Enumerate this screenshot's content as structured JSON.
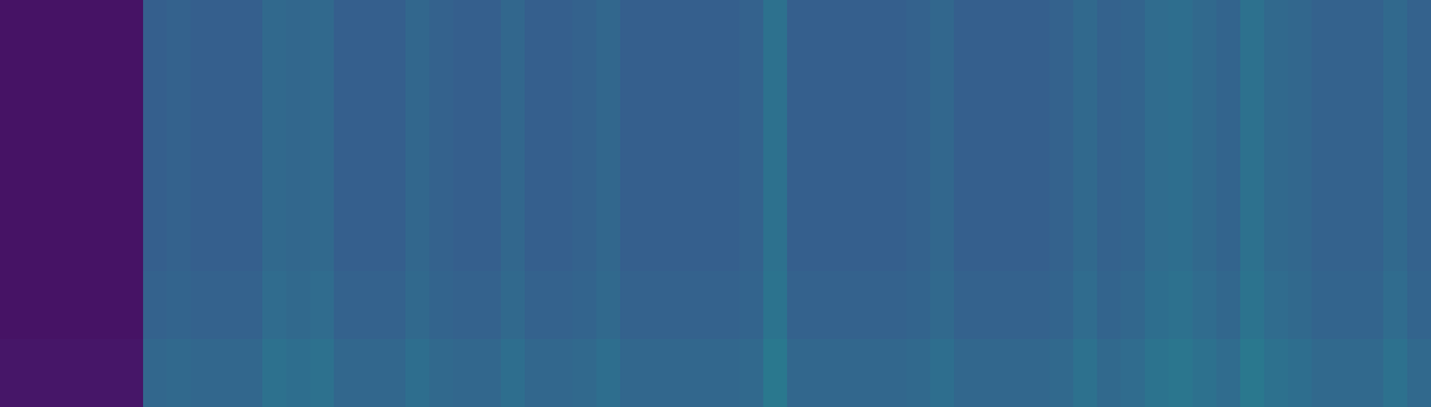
{
  "chart_data": {
    "type": "heatmap",
    "color": "viridis",
    "tick_labels": false,
    "color_range": [
      0,
      1
    ],
    "cells": [
      [
        0.05,
        0.05,
        0.05,
        0.05,
        0.05,
        0.05,
        0.3,
        0.31,
        0.3,
        0.3,
        0.3,
        0.34,
        0.33,
        0.34,
        0.3,
        0.3,
        0.3,
        0.33,
        0.31,
        0.3,
        0.3,
        0.33,
        0.3,
        0.3,
        0.31,
        0.33,
        0.3,
        0.3,
        0.3,
        0.3,
        0.3,
        0.31,
        0.37,
        0.3,
        0.3,
        0.3,
        0.3,
        0.3,
        0.31,
        0.33,
        0.3,
        0.3,
        0.3,
        0.3,
        0.31,
        0.34,
        0.31,
        0.32,
        0.35,
        0.36,
        0.34,
        0.32,
        0.37,
        0.34,
        0.33,
        0.31,
        0.31,
        0.31,
        0.34,
        0.31
      ],
      [
        0.05,
        0.05,
        0.05,
        0.05,
        0.05,
        0.05,
        0.3,
        0.31,
        0.3,
        0.3,
        0.3,
        0.34,
        0.33,
        0.34,
        0.3,
        0.3,
        0.3,
        0.33,
        0.31,
        0.3,
        0.3,
        0.33,
        0.3,
        0.3,
        0.31,
        0.33,
        0.3,
        0.3,
        0.3,
        0.3,
        0.3,
        0.31,
        0.37,
        0.3,
        0.3,
        0.3,
        0.3,
        0.3,
        0.31,
        0.33,
        0.3,
        0.3,
        0.3,
        0.3,
        0.31,
        0.34,
        0.31,
        0.32,
        0.35,
        0.36,
        0.34,
        0.32,
        0.37,
        0.34,
        0.33,
        0.31,
        0.31,
        0.31,
        0.34,
        0.31
      ],
      [
        0.05,
        0.05,
        0.05,
        0.05,
        0.05,
        0.05,
        0.3,
        0.31,
        0.3,
        0.3,
        0.3,
        0.34,
        0.33,
        0.34,
        0.3,
        0.3,
        0.3,
        0.33,
        0.31,
        0.3,
        0.3,
        0.33,
        0.3,
        0.3,
        0.31,
        0.33,
        0.3,
        0.3,
        0.3,
        0.3,
        0.3,
        0.31,
        0.37,
        0.3,
        0.3,
        0.3,
        0.3,
        0.3,
        0.31,
        0.33,
        0.3,
        0.3,
        0.3,
        0.3,
        0.31,
        0.34,
        0.31,
        0.32,
        0.35,
        0.36,
        0.34,
        0.32,
        0.37,
        0.34,
        0.33,
        0.31,
        0.31,
        0.31,
        0.34,
        0.31
      ],
      [
        0.05,
        0.05,
        0.05,
        0.05,
        0.05,
        0.05,
        0.3,
        0.31,
        0.3,
        0.3,
        0.3,
        0.34,
        0.33,
        0.34,
        0.3,
        0.3,
        0.3,
        0.33,
        0.31,
        0.3,
        0.3,
        0.33,
        0.3,
        0.3,
        0.31,
        0.33,
        0.3,
        0.3,
        0.3,
        0.3,
        0.3,
        0.31,
        0.37,
        0.3,
        0.3,
        0.3,
        0.3,
        0.3,
        0.31,
        0.33,
        0.3,
        0.3,
        0.3,
        0.3,
        0.31,
        0.34,
        0.31,
        0.32,
        0.35,
        0.36,
        0.34,
        0.32,
        0.37,
        0.34,
        0.33,
        0.31,
        0.31,
        0.31,
        0.34,
        0.31
      ],
      [
        0.05,
        0.05,
        0.05,
        0.05,
        0.05,
        0.05,
        0.31,
        0.32,
        0.31,
        0.31,
        0.31,
        0.35,
        0.34,
        0.35,
        0.31,
        0.31,
        0.31,
        0.34,
        0.32,
        0.31,
        0.31,
        0.34,
        0.31,
        0.31,
        0.32,
        0.34,
        0.31,
        0.31,
        0.31,
        0.31,
        0.31,
        0.32,
        0.38,
        0.31,
        0.31,
        0.31,
        0.31,
        0.31,
        0.32,
        0.34,
        0.31,
        0.31,
        0.31,
        0.31,
        0.32,
        0.35,
        0.32,
        0.33,
        0.36,
        0.37,
        0.35,
        0.33,
        0.38,
        0.35,
        0.34,
        0.32,
        0.32,
        0.32,
        0.35,
        0.32
      ],
      [
        0.06,
        0.06,
        0.06,
        0.06,
        0.06,
        0.06,
        0.33,
        0.34,
        0.33,
        0.33,
        0.33,
        0.37,
        0.36,
        0.37,
        0.33,
        0.33,
        0.33,
        0.36,
        0.34,
        0.33,
        0.33,
        0.36,
        0.33,
        0.33,
        0.34,
        0.36,
        0.33,
        0.33,
        0.33,
        0.33,
        0.33,
        0.34,
        0.4,
        0.33,
        0.33,
        0.33,
        0.33,
        0.33,
        0.34,
        0.36,
        0.33,
        0.33,
        0.33,
        0.33,
        0.34,
        0.37,
        0.34,
        0.35,
        0.38,
        0.39,
        0.37,
        0.35,
        0.4,
        0.37,
        0.36,
        0.34,
        0.34,
        0.34,
        0.37,
        0.34
      ]
    ]
  }
}
